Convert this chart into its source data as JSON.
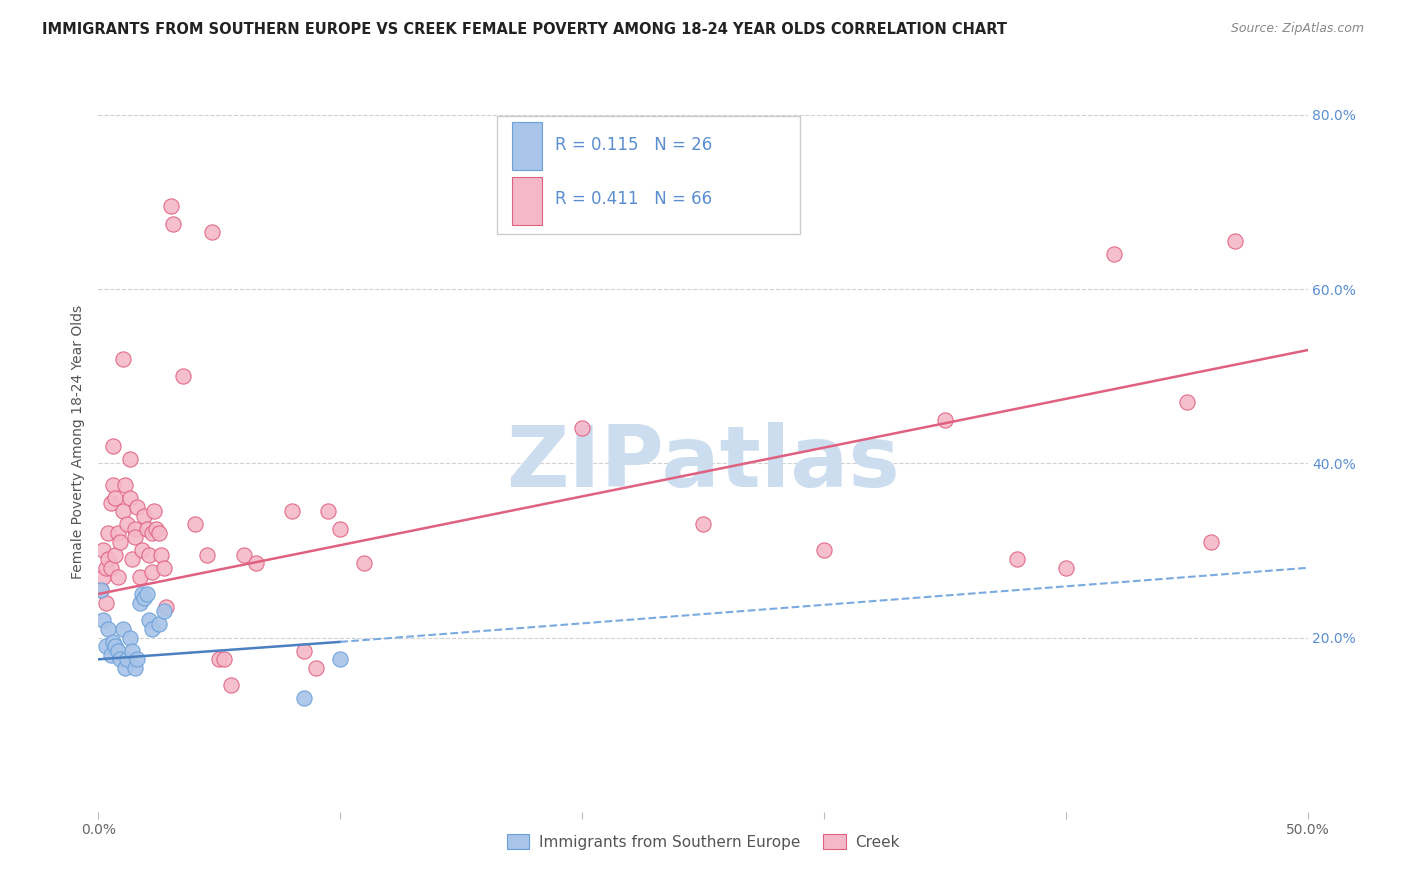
{
  "title": "IMMIGRANTS FROM SOUTHERN EUROPE VS CREEK FEMALE POVERTY AMONG 18-24 YEAR OLDS CORRELATION CHART",
  "source": "Source: ZipAtlas.com",
  "ylabel_left": "Female Poverty Among 18-24 Year Olds",
  "legend_blue_R": "0.115",
  "legend_blue_N": "26",
  "legend_pink_R": "0.411",
  "legend_pink_N": "66",
  "watermark": "ZIPatlas",
  "xlim": [
    0.0,
    0.5
  ],
  "ylim": [
    0.0,
    0.85
  ],
  "blue_scatter": [
    [
      0.001,
      0.255
    ],
    [
      0.002,
      0.22
    ],
    [
      0.003,
      0.19
    ],
    [
      0.004,
      0.21
    ],
    [
      0.005,
      0.18
    ],
    [
      0.006,
      0.195
    ],
    [
      0.007,
      0.19
    ],
    [
      0.008,
      0.185
    ],
    [
      0.009,
      0.175
    ],
    [
      0.01,
      0.21
    ],
    [
      0.011,
      0.165
    ],
    [
      0.012,
      0.175
    ],
    [
      0.013,
      0.2
    ],
    [
      0.014,
      0.185
    ],
    [
      0.015,
      0.165
    ],
    [
      0.016,
      0.175
    ],
    [
      0.017,
      0.24
    ],
    [
      0.018,
      0.25
    ],
    [
      0.019,
      0.245
    ],
    [
      0.02,
      0.25
    ],
    [
      0.021,
      0.22
    ],
    [
      0.022,
      0.21
    ],
    [
      0.025,
      0.215
    ],
    [
      0.027,
      0.23
    ],
    [
      0.085,
      0.13
    ],
    [
      0.1,
      0.175
    ]
  ],
  "pink_scatter": [
    [
      0.001,
      0.255
    ],
    [
      0.002,
      0.27
    ],
    [
      0.002,
      0.3
    ],
    [
      0.003,
      0.28
    ],
    [
      0.003,
      0.24
    ],
    [
      0.004,
      0.32
    ],
    [
      0.004,
      0.29
    ],
    [
      0.005,
      0.28
    ],
    [
      0.005,
      0.355
    ],
    [
      0.006,
      0.42
    ],
    [
      0.006,
      0.375
    ],
    [
      0.007,
      0.36
    ],
    [
      0.007,
      0.295
    ],
    [
      0.008,
      0.32
    ],
    [
      0.008,
      0.27
    ],
    [
      0.009,
      0.31
    ],
    [
      0.01,
      0.345
    ],
    [
      0.01,
      0.52
    ],
    [
      0.011,
      0.375
    ],
    [
      0.012,
      0.33
    ],
    [
      0.013,
      0.405
    ],
    [
      0.013,
      0.36
    ],
    [
      0.014,
      0.29
    ],
    [
      0.015,
      0.325
    ],
    [
      0.015,
      0.315
    ],
    [
      0.016,
      0.35
    ],
    [
      0.017,
      0.27
    ],
    [
      0.018,
      0.3
    ],
    [
      0.019,
      0.34
    ],
    [
      0.02,
      0.325
    ],
    [
      0.021,
      0.295
    ],
    [
      0.022,
      0.32
    ],
    [
      0.022,
      0.275
    ],
    [
      0.023,
      0.345
    ],
    [
      0.024,
      0.325
    ],
    [
      0.025,
      0.32
    ],
    [
      0.026,
      0.295
    ],
    [
      0.027,
      0.28
    ],
    [
      0.028,
      0.235
    ],
    [
      0.03,
      0.695
    ],
    [
      0.031,
      0.675
    ],
    [
      0.035,
      0.5
    ],
    [
      0.04,
      0.33
    ],
    [
      0.045,
      0.295
    ],
    [
      0.047,
      0.665
    ],
    [
      0.05,
      0.175
    ],
    [
      0.052,
      0.175
    ],
    [
      0.055,
      0.145
    ],
    [
      0.06,
      0.295
    ],
    [
      0.065,
      0.285
    ],
    [
      0.08,
      0.345
    ],
    [
      0.085,
      0.185
    ],
    [
      0.09,
      0.165
    ],
    [
      0.095,
      0.345
    ],
    [
      0.1,
      0.325
    ],
    [
      0.11,
      0.285
    ],
    [
      0.2,
      0.44
    ],
    [
      0.25,
      0.33
    ],
    [
      0.3,
      0.3
    ],
    [
      0.35,
      0.45
    ],
    [
      0.38,
      0.29
    ],
    [
      0.4,
      0.28
    ],
    [
      0.42,
      0.64
    ],
    [
      0.45,
      0.47
    ],
    [
      0.46,
      0.31
    ],
    [
      0.47,
      0.655
    ]
  ],
  "blue_dot_color": "#a8c4e8",
  "blue_dot_edge": "#6a9fd8",
  "pink_dot_color": "#f5b8c8",
  "pink_dot_edge": "#e06080",
  "blue_line_color": "#4a7fc0",
  "pink_line_color": "#e06080",
  "blue_dash_color": "#7aaae0",
  "background_color": "#ffffff",
  "grid_color": "#d0d0d0",
  "title_fontsize": 10.5,
  "source_fontsize": 9,
  "axis_label_fontsize": 10,
  "tick_fontsize": 10,
  "legend_fontsize": 12,
  "watermark_color": "#ccddf0",
  "watermark_fontsize": 62,
  "right_tick_color": "#5a8ed0"
}
